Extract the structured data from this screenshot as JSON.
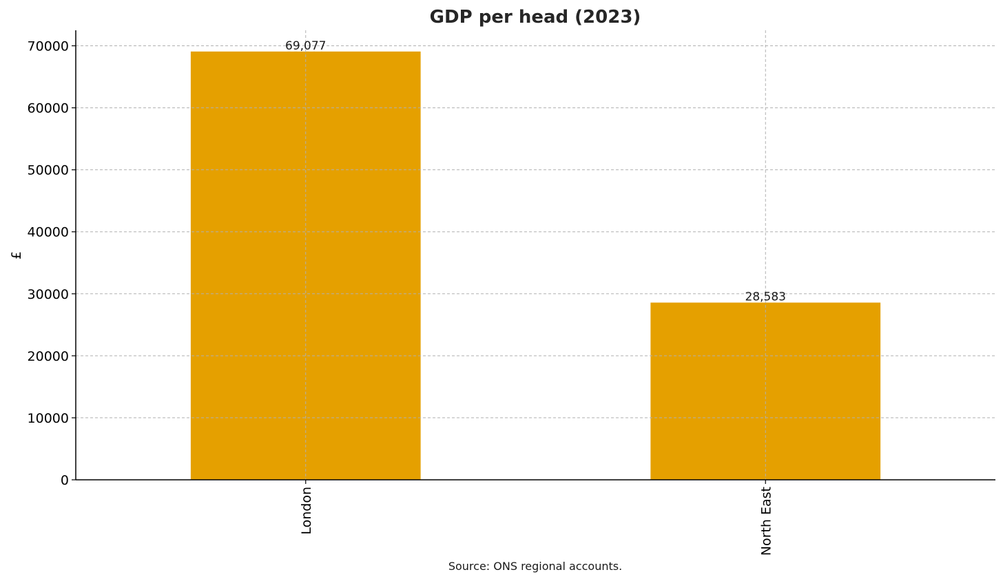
{
  "chart_data": {
    "type": "bar",
    "title": "GDP per head (2023)",
    "ylabel": "£",
    "xlabel": "",
    "categories": [
      "London",
      "North East"
    ],
    "values": [
      69077,
      28583
    ],
    "value_labels": [
      "69,077",
      "28,583"
    ],
    "ylim": [
      0,
      72500
    ],
    "yticks": [
      0,
      10000,
      20000,
      30000,
      40000,
      50000,
      60000,
      70000
    ],
    "ytick_labels": [
      "0",
      "10000",
      "20000",
      "30000",
      "40000",
      "50000",
      "60000",
      "70000"
    ],
    "grid": true,
    "bar_color": "#E5A000",
    "source": "Source: ONS regional accounts."
  }
}
